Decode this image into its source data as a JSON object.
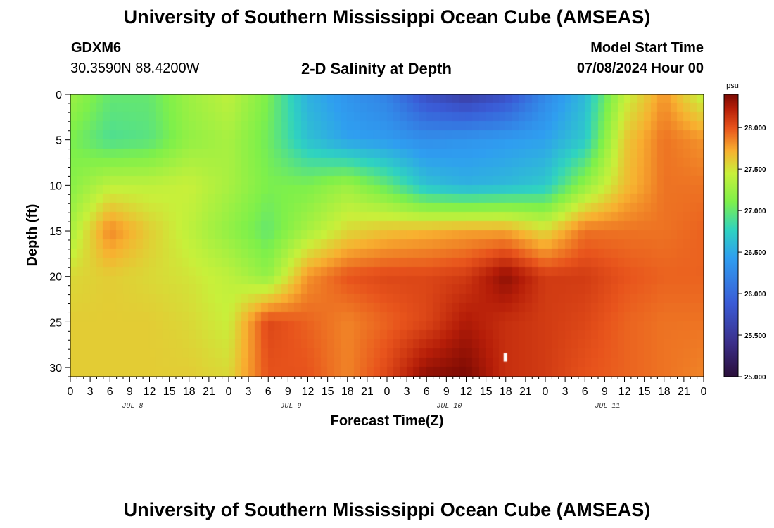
{
  "page": {
    "title": "University of Southern Mississippi Ocean Cube (AMSEAS)",
    "station_id": "GDXM6",
    "station_coords": "30.3590N  88.4200W",
    "plot_title": "2-D Salinity at Depth",
    "model_start_label": "Model Start Time",
    "model_start_value": "07/08/2024 Hour 00",
    "footer_title": "University of Southern Mississippi Ocean Cube (AMSEAS)"
  },
  "chart_data": {
    "type": "heatmap",
    "title": "2-D Salinity at Depth",
    "xlabel": "Forecast Time(Z)",
    "ylabel": "Depth (ft)",
    "x_tick_labels": [
      "0",
      "3",
      "6",
      "9",
      "12",
      "15",
      "18",
      "21",
      "0",
      "3",
      "6",
      "9",
      "12",
      "15",
      "18",
      "21",
      "0",
      "3",
      "6",
      "9",
      "12",
      "15",
      "18",
      "21",
      "0",
      "3",
      "6",
      "9",
      "12",
      "15",
      "18",
      "21",
      "0"
    ],
    "day_labels": [
      {
        "label": "JUL 8",
        "hour": 9
      },
      {
        "label": "JUL 9",
        "hour": 33
      },
      {
        "label": "JUL 10",
        "hour": 57
      },
      {
        "label": "JUL 11",
        "hour": 81
      }
    ],
    "xlim_hours": [
      0,
      96
    ],
    "y_ticks": [
      0,
      5,
      10,
      15,
      20,
      25,
      30
    ],
    "ylim": [
      0,
      31
    ],
    "colorbar": {
      "unit": "psu",
      "ticks": [
        "25.000",
        "25.500",
        "26.000",
        "26.500",
        "27.000",
        "27.500",
        "28.000"
      ],
      "range": [
        25.0,
        28.4
      ]
    },
    "colors": {
      "low": "#2b0f3a",
      "mid_low": "#3a5bd6",
      "mid": "#2fd3c0",
      "mid_high": "#b8f03a",
      "high": "#f08a2a",
      "max": "#7a0a03"
    },
    "x_hours": [
      0,
      6,
      12,
      18,
      24,
      30,
      36,
      42,
      48,
      54,
      60,
      66,
      72,
      78,
      84,
      90,
      96
    ],
    "depths_ft": [
      0,
      5,
      10,
      15,
      20,
      25,
      31
    ],
    "salinity_psu": [
      [
        27.25,
        27.0,
        27.0,
        27.25,
        27.4,
        27.1,
        26.55,
        26.35,
        26.2,
        25.75,
        25.55,
        25.75,
        26.25,
        26.6,
        27.4,
        27.8,
        27.4
      ],
      [
        27.1,
        26.9,
        26.95,
        27.2,
        27.3,
        27.05,
        26.65,
        26.45,
        26.4,
        26.3,
        26.35,
        26.4,
        26.45,
        26.7,
        27.6,
        27.9,
        27.8
      ],
      [
        27.15,
        27.4,
        27.4,
        27.45,
        27.3,
        27.1,
        27.1,
        27.25,
        27.0,
        26.65,
        26.55,
        26.6,
        26.7,
        27.2,
        27.65,
        27.9,
        27.9
      ],
      [
        27.3,
        27.85,
        27.6,
        27.4,
        27.2,
        27.0,
        27.3,
        27.55,
        27.65,
        27.7,
        27.75,
        27.75,
        27.55,
        27.9,
        27.9,
        27.9,
        27.95
      ],
      [
        27.55,
        27.6,
        27.55,
        27.5,
        27.4,
        27.2,
        27.8,
        28.0,
        28.05,
        28.05,
        28.1,
        28.35,
        28.1,
        28.1,
        28.0,
        27.95,
        27.95
      ],
      [
        27.6,
        27.6,
        27.6,
        27.55,
        27.45,
        28.05,
        27.95,
        27.85,
        27.95,
        28.05,
        28.25,
        28.15,
        28.1,
        28.05,
        27.95,
        27.9,
        27.9
      ],
      [
        27.6,
        27.6,
        27.6,
        27.6,
        27.55,
        28.0,
        28.0,
        27.85,
        28.05,
        28.35,
        28.4,
        28.15,
        28.1,
        28.0,
        27.95,
        27.9,
        27.85
      ]
    ],
    "grid": false
  }
}
